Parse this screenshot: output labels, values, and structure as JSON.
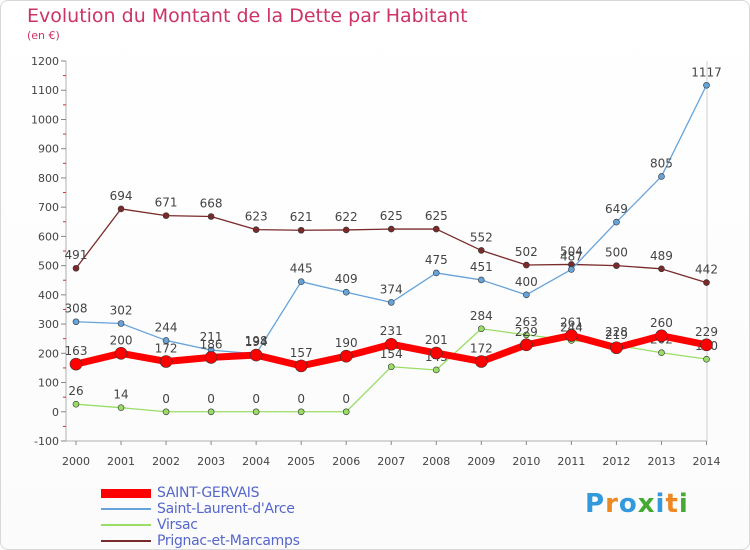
{
  "header": {
    "title": "Evolution du Montant de la Dette par Habitant",
    "subtitle": "(en €)"
  },
  "logo": {
    "letters": [
      "P",
      "r",
      "o",
      "x",
      "i",
      "t",
      "i"
    ],
    "colors": [
      "#3399dd",
      "#ee8822",
      "#3399dd",
      "#44aa33",
      "#3399dd",
      "#ee8822",
      "#44aa33"
    ]
  },
  "chart_data": {
    "type": "line",
    "title": "Evolution du Montant de la Dette par Habitant",
    "subtitle": "(en €)",
    "xlabel": "",
    "ylabel": "",
    "x": [
      "2000",
      "2001",
      "2002",
      "2003",
      "2004",
      "2005",
      "2006",
      "2007",
      "2008",
      "2009",
      "2010",
      "2011",
      "2012",
      "2013",
      "2014"
    ],
    "ylim": [
      -100,
      1200
    ],
    "yticks": [
      -100,
      0,
      100,
      200,
      300,
      400,
      500,
      600,
      700,
      800,
      900,
      1000,
      1100,
      1200
    ],
    "grid": false,
    "legend_position": "bottom-left",
    "series": [
      {
        "name": "Prignac-et-Marcamps",
        "color": "#7a2a2a",
        "width": 1.3,
        "marker": 3,
        "values": [
          491,
          694,
          671,
          668,
          623,
          621,
          622,
          625,
          625,
          552,
          502,
          504,
          500,
          489,
          442
        ]
      },
      {
        "name": "Saint-Laurent-d'Arce",
        "color": "#66a3d9",
        "width": 1.3,
        "marker": 3,
        "values": [
          308,
          302,
          244,
          211,
          198,
          445,
          409,
          374,
          475,
          451,
          400,
          487,
          649,
          805,
          1117
        ]
      },
      {
        "name": "Virsac",
        "color": "#99dd66",
        "width": 1.3,
        "marker": 3,
        "values": [
          26,
          14,
          0,
          0,
          0,
          0,
          0,
          154,
          143,
          284,
          263,
          244,
          228,
          202,
          180
        ]
      },
      {
        "name": "SAINT-GERVAIS",
        "color": "#ff0000",
        "width": 7,
        "marker": 6,
        "values": [
          163,
          200,
          172,
          186,
          194,
          157,
          190,
          231,
          201,
          172,
          229,
          261,
          219,
          260,
          229
        ]
      }
    ],
    "legend_order": [
      "SAINT-GERVAIS",
      "Saint-Laurent-d'Arce",
      "Virsac",
      "Prignac-et-Marcamps"
    ]
  }
}
